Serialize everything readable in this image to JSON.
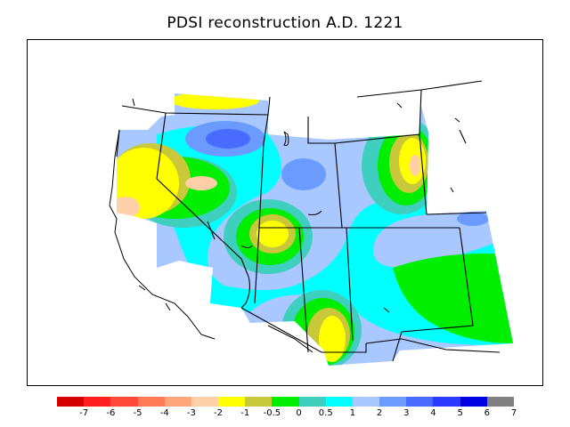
{
  "title": "PDSI reconstruction A.D. 1221",
  "legend": {
    "colors": [
      "#d40000",
      "#ff1f1f",
      "#ff4a3a",
      "#ff7a55",
      "#ffa77a",
      "#ffd0a8",
      "#ffff00",
      "#c8c83a",
      "#00ee00",
      "#3fcfbf",
      "#00ffff",
      "#a8c8ff",
      "#6b9bff",
      "#4a6bff",
      "#2a3bff",
      "#0000e0",
      "#808080"
    ],
    "labels": [
      "-7",
      "-6",
      "-5",
      "-4",
      "-3",
      "-2",
      "-1",
      "-0.5",
      "0",
      "0.5",
      "1",
      "2",
      "3",
      "4",
      "5",
      "6",
      "7"
    ]
  },
  "colors": {
    "c_dry_2": "#ffd0a8",
    "c_dry_1": "#ffff00",
    "c_dry_05": "#c8c83a",
    "c_neutral": "#00ee00",
    "c_wet_05": "#3fcfbf",
    "c_wet_1": "#00ffff",
    "c_wet_2": "#a8c8ff",
    "c_wet_3": "#6b9bff",
    "c_wet_4": "#4a6bff"
  }
}
